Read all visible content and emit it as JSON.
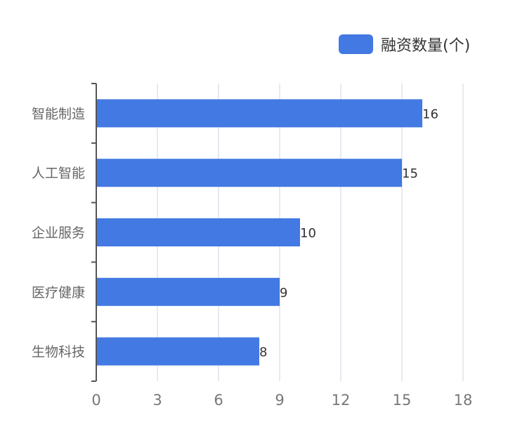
{
  "chart_data": {
    "type": "bar",
    "orientation": "horizontal",
    "categories": [
      "智能制造",
      "人工智能",
      "企业服务",
      "医疗健康",
      "生物科技"
    ],
    "series": [
      {
        "name": "融资数量(个)",
        "values": [
          16,
          15,
          10,
          9,
          8
        ],
        "color": "#4379e2"
      }
    ],
    "xlim": [
      0,
      18
    ],
    "xticks": [
      "0",
      "3",
      "6",
      "9",
      "12",
      "15",
      "18"
    ],
    "grid": true,
    "legend_position": "top-right",
    "data_labels": [
      "16",
      "15",
      "10",
      "9",
      "8"
    ]
  },
  "legend": {
    "label": "融资数量(个)"
  },
  "colors": {
    "bar": "#4379e2",
    "grid": "#dde3ee",
    "axis": "#555555",
    "tick_text": "#777777",
    "category_text": "#666666",
    "label_text": "#333333"
  }
}
